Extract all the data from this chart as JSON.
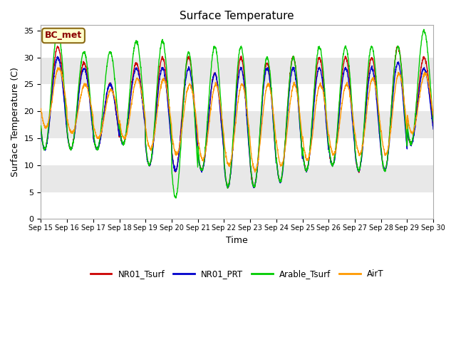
{
  "title": "Surface Temperature",
  "ylabel": "Surface Temperature (C)",
  "xlabel": "Time",
  "ylim": [
    0,
    36
  ],
  "yticks": [
    0,
    5,
    10,
    15,
    20,
    25,
    30,
    35
  ],
  "annotation_text": "BC_met",
  "legend_labels": [
    "NR01_Tsurf",
    "NR01_PRT",
    "Arable_Tsurf",
    "AirT"
  ],
  "line_colors": [
    "#cc0000",
    "#0000cc",
    "#00cc00",
    "#ff9900"
  ],
  "background_color": "#ffffff",
  "gray_band_color": "#e8e8e8",
  "start_day": 15,
  "end_day": 30,
  "n_points_per_day": 144,
  "title_fontsize": 11,
  "label_fontsize": 9,
  "tick_fontsize": 8
}
